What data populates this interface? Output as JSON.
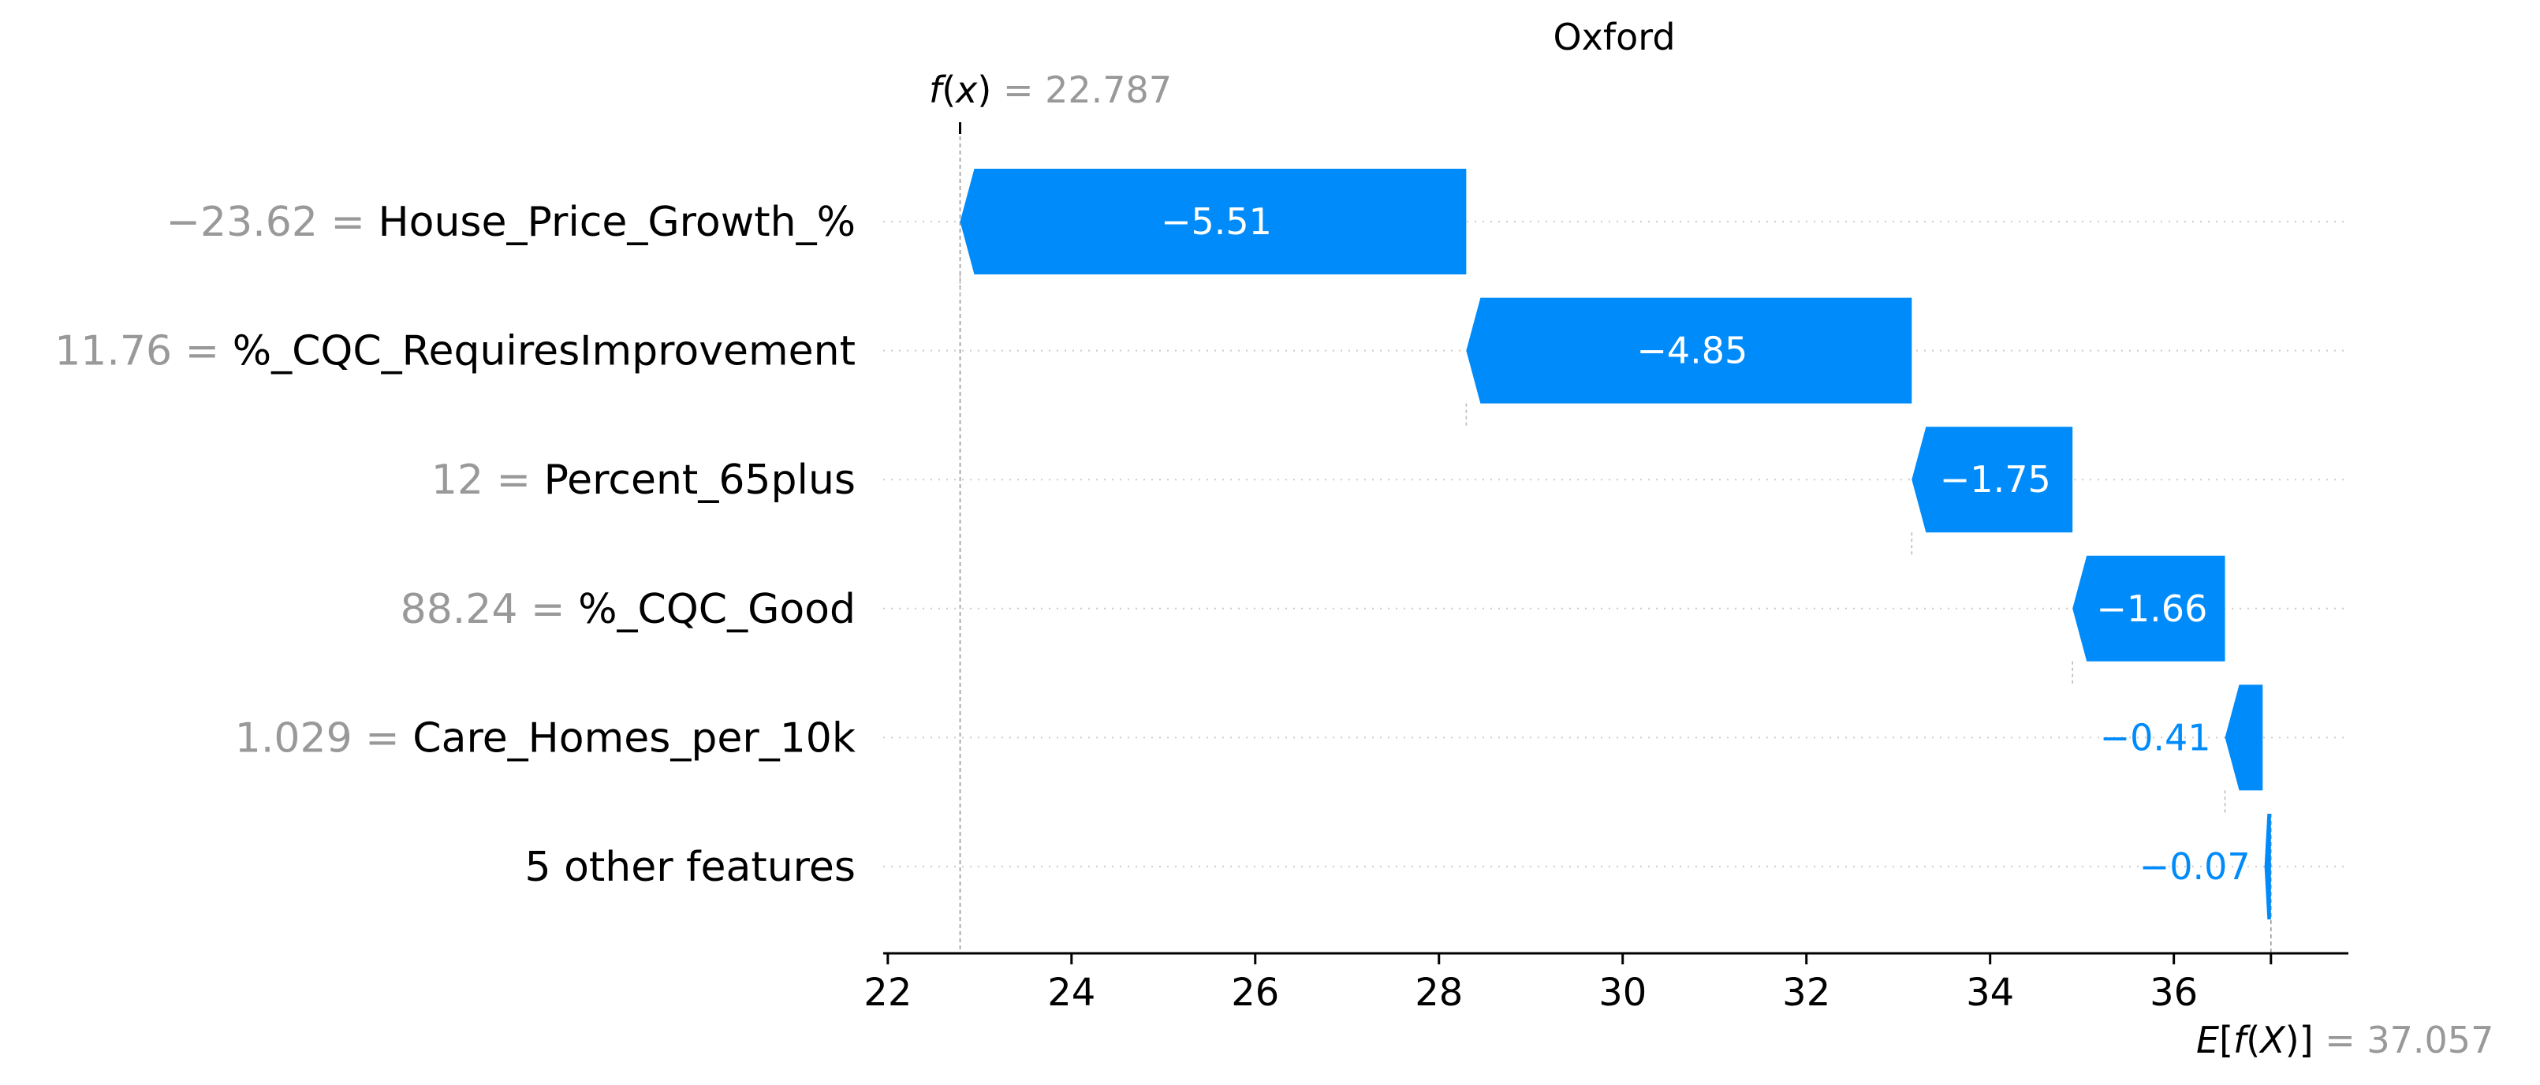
{
  "chart_data": {
    "type": "waterfall",
    "title": "Oxford",
    "fx": {
      "label_f": "f",
      "label_x": "x",
      "value": "= 22.787",
      "numeric": 22.787
    },
    "efx": {
      "label_e": "E",
      "label_f": "f",
      "label_X": "X",
      "value": "= 37.057",
      "numeric": 37.057
    },
    "xlim": [
      21.95,
      37.9
    ],
    "xticks": [
      22,
      24,
      26,
      28,
      30,
      32,
      34,
      36
    ],
    "xtick_labels": [
      "22",
      "24",
      "26",
      "28",
      "30",
      "32",
      "34",
      "36"
    ],
    "rows": [
      {
        "value_text": "−23.62 =",
        "feature": "House_Price_Growth_%",
        "label": "−5.51",
        "start": 28.297,
        "shap": -5.51,
        "label_inside": true
      },
      {
        "value_text": "11.76 =",
        "feature": "%_CQC_RequiresImprovement",
        "label": "−4.85",
        "start": 33.147,
        "shap": -4.85,
        "label_inside": true
      },
      {
        "value_text": "12 =",
        "feature": "Percent_65plus",
        "label": "−1.75",
        "start": 34.897,
        "shap": -1.75,
        "label_inside": true
      },
      {
        "value_text": "88.24 =",
        "feature": "%_CQC_Good",
        "label": "−1.66",
        "start": 36.557,
        "shap": -1.66,
        "label_inside": true
      },
      {
        "value_text": "1.029 =",
        "feature": "Care_Homes_per_10k",
        "label": "−0.41",
        "start": 36.967,
        "shap": -0.41,
        "label_inside": false
      },
      {
        "value_text": "",
        "feature": "5 other features",
        "label": "−0.07",
        "start": 37.057,
        "shap": -0.07,
        "label_inside": false
      }
    ],
    "colors": {
      "negative": "#008bfb",
      "grey": "#999999",
      "text": "#000000",
      "inside_text": "#ffffff",
      "axis": "#333333"
    }
  }
}
